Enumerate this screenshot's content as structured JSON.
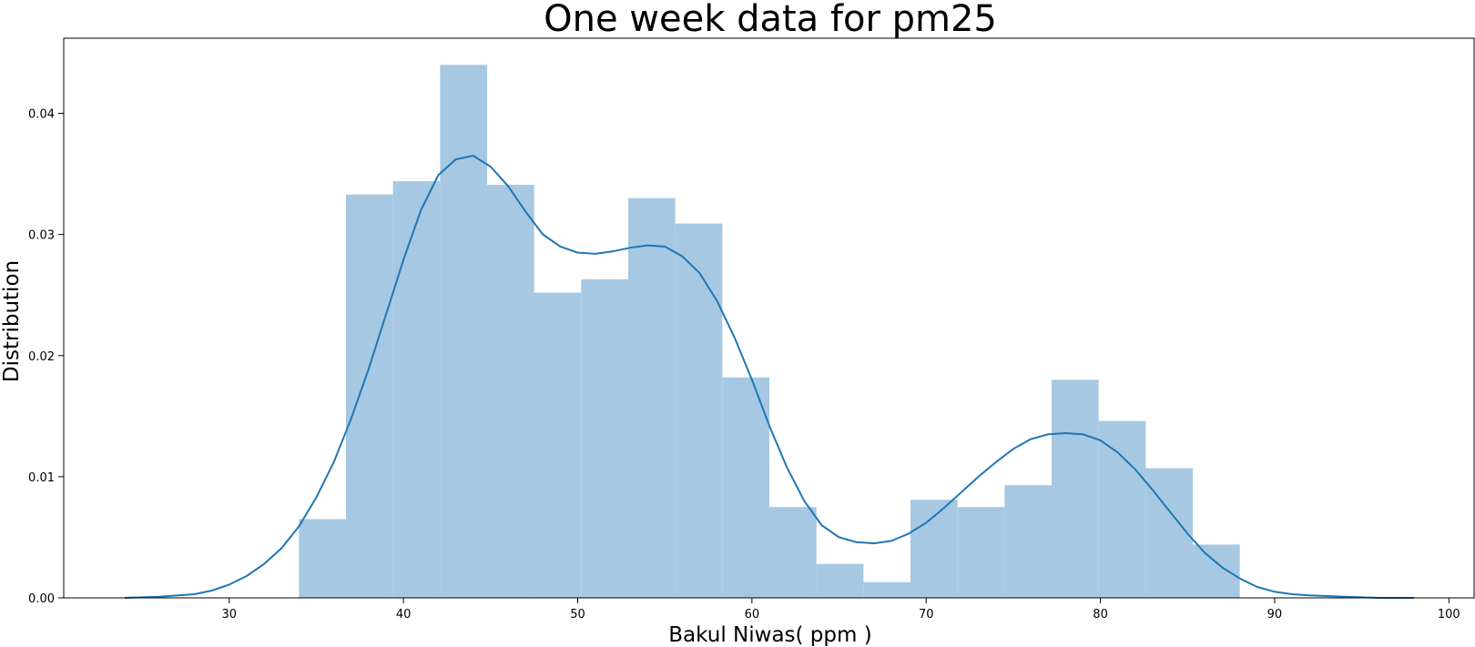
{
  "chart_data": {
    "type": "histogram",
    "title": "One week data for pm25",
    "xlabel": "Bakul Niwas( ppm )",
    "ylabel": "Distribution",
    "xlim": [
      20.5,
      101.5
    ],
    "ylim": [
      0,
      0.0462
    ],
    "xticks": [
      30,
      40,
      50,
      60,
      70,
      80,
      90,
      100
    ],
    "yticks": [
      0.0,
      0.01,
      0.02,
      0.03,
      0.04
    ],
    "ytick_labels": [
      "0.00",
      "0.01",
      "0.02",
      "0.03",
      "0.04"
    ],
    "bar_color": "#a6c8e2",
    "line_color": "#1f77b4",
    "bins": [
      {
        "start": 34.0,
        "end": 36.7,
        "density": 0.0065
      },
      {
        "start": 36.7,
        "end": 39.4,
        "density": 0.0333
      },
      {
        "start": 39.4,
        "end": 42.1,
        "density": 0.0344
      },
      {
        "start": 42.1,
        "end": 44.8,
        "density": 0.044
      },
      {
        "start": 44.8,
        "end": 47.5,
        "density": 0.0341
      },
      {
        "start": 47.5,
        "end": 50.2,
        "density": 0.0252
      },
      {
        "start": 50.2,
        "end": 52.9,
        "density": 0.0263
      },
      {
        "start": 52.9,
        "end": 55.6,
        "density": 0.033
      },
      {
        "start": 55.6,
        "end": 58.3,
        "density": 0.0309
      },
      {
        "start": 58.3,
        "end": 61.0,
        "density": 0.0182
      },
      {
        "start": 61.0,
        "end": 63.7,
        "density": 0.0075
      },
      {
        "start": 63.7,
        "end": 66.4,
        "density": 0.0028
      },
      {
        "start": 66.4,
        "end": 69.1,
        "density": 0.0013
      },
      {
        "start": 69.1,
        "end": 71.8,
        "density": 0.0081
      },
      {
        "start": 71.8,
        "end": 74.5,
        "density": 0.0075
      },
      {
        "start": 74.5,
        "end": 77.2,
        "density": 0.0093
      },
      {
        "start": 77.2,
        "end": 79.9,
        "density": 0.018
      },
      {
        "start": 79.9,
        "end": 82.6,
        "density": 0.0146
      },
      {
        "start": 82.6,
        "end": 85.3,
        "density": 0.0107
      },
      {
        "start": 85.3,
        "end": 88.0,
        "density": 0.0044
      }
    ],
    "kde": {
      "x": [
        24,
        26,
        28,
        29,
        30,
        31,
        32,
        33,
        34,
        35,
        36,
        37,
        38,
        39,
        40,
        41,
        42,
        43,
        44,
        45,
        46,
        47,
        48,
        49,
        50,
        51,
        52,
        53,
        54,
        55,
        56,
        57,
        58,
        59,
        60,
        61,
        62,
        63,
        64,
        65,
        66,
        67,
        68,
        69,
        70,
        71,
        72,
        73,
        74,
        75,
        76,
        77,
        78,
        79,
        80,
        81,
        82,
        83,
        84,
        85,
        86,
        87,
        88,
        89,
        90,
        91,
        92,
        94,
        96,
        98
      ],
      "y": [
        0.0,
        0.0001,
        0.0003,
        0.0006,
        0.0011,
        0.0018,
        0.0028,
        0.0041,
        0.0059,
        0.0083,
        0.0112,
        0.0148,
        0.0189,
        0.0234,
        0.0279,
        0.032,
        0.0349,
        0.0362,
        0.0365,
        0.0356,
        0.034,
        0.0319,
        0.03,
        0.029,
        0.0285,
        0.0284,
        0.0286,
        0.0289,
        0.0291,
        0.029,
        0.0282,
        0.0268,
        0.0245,
        0.0215,
        0.018,
        0.0142,
        0.0108,
        0.008,
        0.006,
        0.005,
        0.0046,
        0.0045,
        0.0047,
        0.0053,
        0.0062,
        0.0074,
        0.0087,
        0.01,
        0.0112,
        0.0123,
        0.0131,
        0.0135,
        0.0136,
        0.0135,
        0.013,
        0.012,
        0.0106,
        0.0089,
        0.0071,
        0.0053,
        0.0037,
        0.0025,
        0.0016,
        0.0009,
        0.0005,
        0.0003,
        0.0002,
        0.0001,
        0.0,
        0.0
      ]
    }
  }
}
